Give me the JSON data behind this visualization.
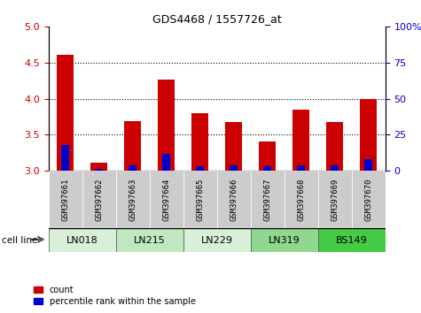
{
  "title": "GDS4468 / 1557726_at",
  "samples": [
    "GSM397661",
    "GSM397662",
    "GSM397663",
    "GSM397664",
    "GSM397665",
    "GSM397666",
    "GSM397667",
    "GSM397668",
    "GSM397669",
    "GSM397670"
  ],
  "cell_lines": [
    {
      "name": "LN018",
      "samples": [
        0,
        1
      ],
      "color": "#d8f0d8"
    },
    {
      "name": "LN215",
      "samples": [
        2,
        3
      ],
      "color": "#c0e8c0"
    },
    {
      "name": "LN229",
      "samples": [
        4,
        5
      ],
      "color": "#d8f0d8"
    },
    {
      "name": "LN319",
      "samples": [
        6,
        7
      ],
      "color": "#90d890"
    },
    {
      "name": "BS149",
      "samples": [
        8,
        9
      ],
      "color": "#44cc44"
    }
  ],
  "count_values": [
    4.61,
    3.11,
    3.69,
    4.27,
    3.8,
    3.67,
    3.41,
    3.85,
    3.68,
    3.99
  ],
  "percentile_values": [
    3.36,
    3.02,
    3.07,
    3.23,
    3.06,
    3.07,
    3.06,
    3.07,
    3.07,
    3.16
  ],
  "ylim": [
    3.0,
    5.0
  ],
  "yticks_left": [
    3.0,
    3.5,
    4.0,
    4.5,
    5.0
  ],
  "yticks_right_vals": [
    3.0,
    3.5,
    4.0,
    4.5,
    5.0
  ],
  "yticks_right_labels": [
    "0",
    "25",
    "50",
    "75",
    "100%"
  ],
  "bar_color": "#cc0000",
  "percentile_color": "#0000cc",
  "left_tick_color": "#cc0000",
  "right_tick_color": "#0000cc",
  "bar_width": 0.5,
  "blue_bar_width": 0.25,
  "legend_count_label": "count",
  "legend_pct_label": "percentile rank within the sample",
  "cell_line_label": "cell line",
  "sample_bg_color": "#cccccc",
  "cell_line_border_color": "#555555"
}
